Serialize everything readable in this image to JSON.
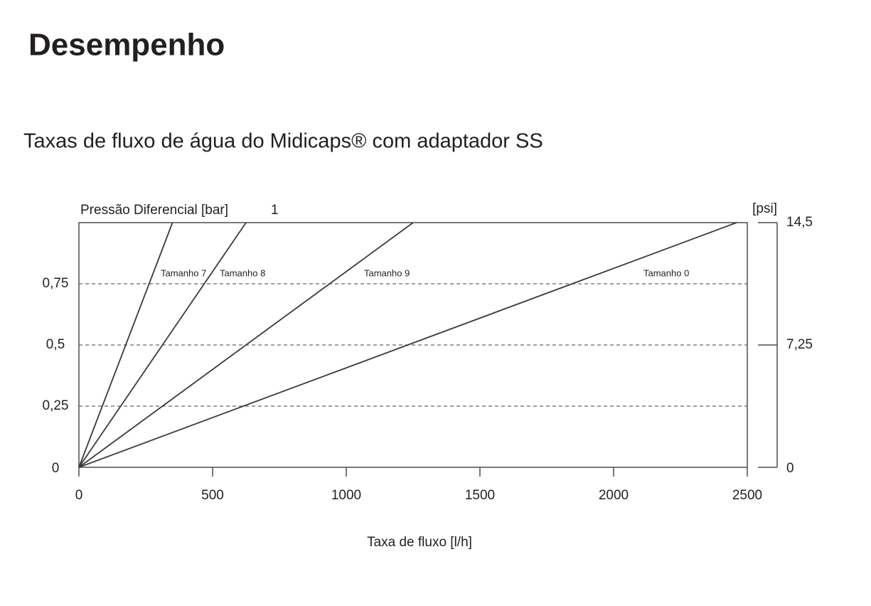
{
  "header": {
    "title": "Desempenho"
  },
  "chart_data": {
    "type": "line",
    "title": "Taxas de fluxo de água do Midicaps® com adaptador SS",
    "xlabel": "Taxa de fluxo [l/h]",
    "ylabel": "Pressão Diferencial [bar]",
    "y2label": "[psi]",
    "xlim": [
      0,
      2500
    ],
    "xticks": [
      0,
      500,
      1000,
      1500,
      2000,
      2500
    ],
    "ylim": [
      0,
      1
    ],
    "yticks": [
      0,
      {
        "value": 0.25,
        "label": "0,25"
      },
      {
        "value": 0.5,
        "label": "0,5"
      },
      {
        "value": 0.75,
        "label": "0,75"
      },
      1
    ],
    "y2lim": [
      0,
      14.5
    ],
    "y2ticks": [
      0,
      {
        "value": 7.25,
        "label": "7,25"
      },
      {
        "value": 14.5,
        "label": "14,5"
      }
    ],
    "grid": true,
    "series": [
      {
        "name": "Tamanho 7",
        "color": "#3a3a3a",
        "x": [
          0,
          350
        ],
        "values": [
          0,
          1
        ]
      },
      {
        "name": "Tamanho 8",
        "color": "#3a3a3a",
        "x": [
          0,
          625
        ],
        "values": [
          0,
          1
        ]
      },
      {
        "name": "Tamanho 9",
        "color": "#3a3a3a",
        "x": [
          0,
          1250
        ],
        "values": [
          0,
          1
        ]
      },
      {
        "name": "Tamanho 0",
        "color": "#3a3a3a",
        "x": [
          0,
          2460
        ],
        "values": [
          0,
          1
        ]
      }
    ]
  }
}
